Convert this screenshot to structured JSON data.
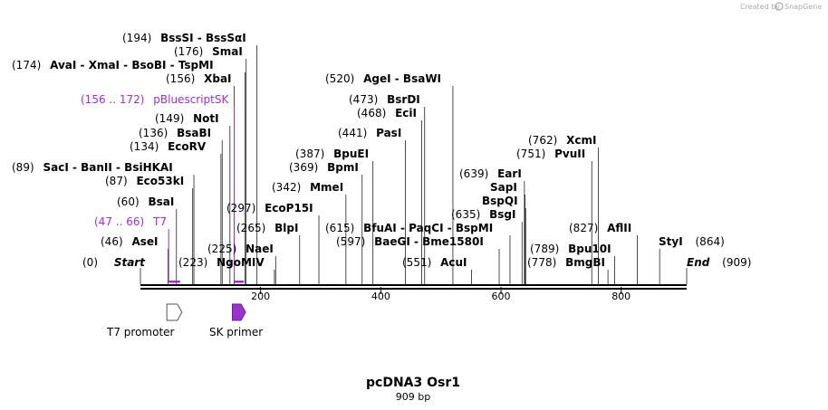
{
  "brand": {
    "created_by": "Created by",
    "app": "SnapGene"
  },
  "title": "pcDNA3 Osr1",
  "subtitle": "909 bp",
  "sequence_length": 909,
  "axis_ticks": [
    {
      "value": 200,
      "label": "200"
    },
    {
      "value": 400,
      "label": "400"
    },
    {
      "value": 600,
      "label": "600"
    },
    {
      "value": 800,
      "label": "800"
    }
  ],
  "sites": [
    {
      "pos": 194,
      "num": "(194)",
      "name": "BssSI  - BssSαI"
    },
    {
      "pos": 176,
      "num": "(176)",
      "name": "SmaI"
    },
    {
      "pos": 174,
      "num": "(174)",
      "name": "AvaI  - XmaI  - BsoBI  - TspMI"
    },
    {
      "pos": 156,
      "num": "(156)",
      "name": "XbaI"
    },
    {
      "pos": 149,
      "num": "(149)",
      "name": "NotI"
    },
    {
      "pos": 136,
      "num": "(136)",
      "name": "BsaBI"
    },
    {
      "pos": 134,
      "num": "(134)",
      "name": "EcoRV"
    },
    {
      "pos": 89,
      "num": "(89)",
      "name": "SacI  - BanII  - BsiHKAI"
    },
    {
      "pos": 87,
      "num": "(87)",
      "name": "Eco53kI"
    },
    {
      "pos": 60,
      "num": "(60)",
      "name": "BsaI"
    },
    {
      "pos": 46,
      "num": "(46)",
      "name": "AseI"
    },
    {
      "pos": 223,
      "num": "(223)",
      "name": "NgoMIV"
    },
    {
      "pos": 225,
      "num": "(225)",
      "name": "NaeI"
    },
    {
      "pos": 265,
      "num": "(265)",
      "name": "BlpI"
    },
    {
      "pos": 297,
      "num": "(297)",
      "name": "EcoP15I"
    },
    {
      "pos": 342,
      "num": "(342)",
      "name": "MmeI"
    },
    {
      "pos": 369,
      "num": "(369)",
      "name": "BpmI"
    },
    {
      "pos": 387,
      "num": "(387)",
      "name": "BpuEI"
    },
    {
      "pos": 441,
      "num": "(441)",
      "name": "PasI"
    },
    {
      "pos": 468,
      "num": "(468)",
      "name": "EciI"
    },
    {
      "pos": 473,
      "num": "(473)",
      "name": "BsrDI"
    },
    {
      "pos": 520,
      "num": "(520)",
      "name": "AgeI  - BsaWI"
    },
    {
      "pos": 615,
      "num": "(615)",
      "name": "BfuAI  - PaqCI  - BspMI"
    },
    {
      "pos": 597,
      "num": "(597)",
      "name": "BaeGI  - Bme1580I"
    },
    {
      "pos": 551,
      "num": "(551)",
      "name": "AcuI"
    },
    {
      "pos": 639,
      "num": "(639)",
      "name": "EarI"
    },
    {
      "pos": 640,
      "num": "",
      "name": "SapI"
    },
    {
      "pos": 641,
      "num": "",
      "name": "BspQI"
    },
    {
      "pos": 635,
      "num": "(635)",
      "name": "BsgI"
    },
    {
      "pos": 762,
      "num": "(762)",
      "name": "XcmI"
    },
    {
      "pos": 751,
      "num": "(751)",
      "name": "PvuII"
    },
    {
      "pos": 827,
      "num": "(827)",
      "name": "AflII"
    },
    {
      "pos": 789,
      "num": "(789)",
      "name": "Bpu10I"
    },
    {
      "pos": 778,
      "num": "(778)",
      "name": "BmgBI"
    },
    {
      "pos": 864,
      "num": "(864)",
      "name": "StyI"
    }
  ],
  "terminals": [
    {
      "pos": 0,
      "num": "(0)",
      "name": "Start"
    },
    {
      "pos": 909,
      "num": "(909)",
      "name": "End"
    }
  ],
  "primers": [
    {
      "range": "(156 .. 172)",
      "name": "pBluescriptSK",
      "start": 156,
      "end": 172
    },
    {
      "range": "(47 .. 66)",
      "name": "T7",
      "start": 47,
      "end": 66
    }
  ],
  "features": [
    {
      "name": "T7 promoter",
      "start": 47,
      "end": 66,
      "color": "#ffffff"
    },
    {
      "name": "SK primer",
      "start": 156,
      "end": 172,
      "color": "#9933cc"
    }
  ],
  "colors": {
    "primer": "#9933cc",
    "ruler": "#000000"
  }
}
